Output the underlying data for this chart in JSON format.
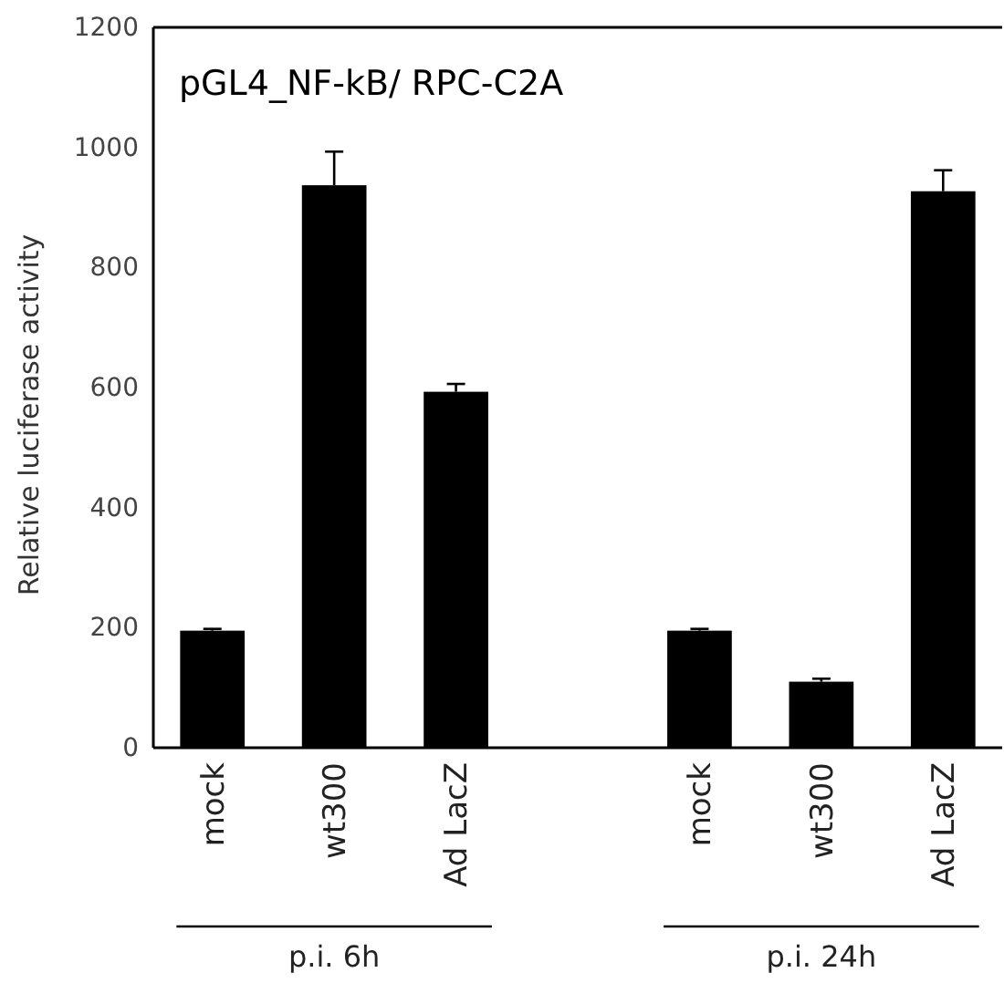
{
  "chart_data": {
    "type": "bar",
    "title": "pGL4_NF-kB/ RPC-C2A",
    "ylabel": "Relative luciferase activity",
    "categories": [
      "mock",
      "wt300",
      "Ad LacZ",
      null,
      "mock",
      "wt300",
      "Ad LacZ"
    ],
    "values": [
      195,
      937,
      593,
      null,
      195,
      110,
      927
    ],
    "errors": [
      [
        195,
        198
      ],
      [
        937,
        993
      ],
      [
        593,
        606
      ],
      null,
      [
        195,
        198
      ],
      [
        110,
        115
      ],
      [
        927,
        962
      ]
    ],
    "color": "#000000",
    "ylim": [
      0,
      1200
    ],
    "yticks": [
      0,
      200,
      400,
      600,
      800,
      1000,
      1200
    ],
    "grid": false,
    "annotations": [
      "p.i. 6h",
      "p.i. 24h"
    ]
  }
}
